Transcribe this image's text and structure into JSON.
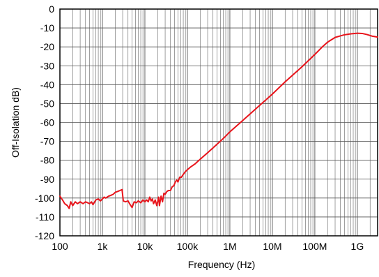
{
  "chart_data": {
    "type": "line",
    "title": "",
    "xlabel": "Frequency (Hz)",
    "ylabel": "Off-Isolation dB)",
    "xscale": "log",
    "xlim": [
      100,
      3000000000
    ],
    "ylim": [
      -120,
      0
    ],
    "grid": true,
    "legend": "none",
    "x_ticks": [
      {
        "value": 100,
        "label": "100"
      },
      {
        "value": 1000,
        "label": "1k"
      },
      {
        "value": 10000,
        "label": "10k"
      },
      {
        "value": 100000,
        "label": "100k"
      },
      {
        "value": 1000000,
        "label": "1M"
      },
      {
        "value": 10000000,
        "label": "10M"
      },
      {
        "value": 100000000,
        "label": "100M"
      },
      {
        "value": 1000000000,
        "label": "1G"
      }
    ],
    "y_ticks": [
      {
        "value": 0,
        "label": "0"
      },
      {
        "value": -10,
        "label": "-10"
      },
      {
        "value": -20,
        "label": "-20"
      },
      {
        "value": -30,
        "label": "-30"
      },
      {
        "value": -40,
        "label": "-40"
      },
      {
        "value": -50,
        "label": "-50"
      },
      {
        "value": -60,
        "label": "-60"
      },
      {
        "value": -70,
        "label": "-70"
      },
      {
        "value": -80,
        "label": "-80"
      },
      {
        "value": -90,
        "label": "-90"
      },
      {
        "value": -100,
        "label": "-100"
      },
      {
        "value": -110,
        "label": "-110"
      },
      {
        "value": -120,
        "label": "-120"
      }
    ],
    "series": [
      {
        "color": "#e8141b",
        "points": [
          [
            100,
            -99
          ],
          [
            115,
            -101
          ],
          [
            130,
            -103
          ],
          [
            150,
            -104
          ],
          [
            165,
            -105.5
          ],
          [
            180,
            -102
          ],
          [
            200,
            -104
          ],
          [
            230,
            -102
          ],
          [
            260,
            -103
          ],
          [
            300,
            -102
          ],
          [
            350,
            -103
          ],
          [
            400,
            -102
          ],
          [
            450,
            -102.5
          ],
          [
            500,
            -103
          ],
          [
            550,
            -102
          ],
          [
            600,
            -103.5
          ],
          [
            700,
            -101
          ],
          [
            800,
            -100.5
          ],
          [
            900,
            -101.5
          ],
          [
            1000,
            -100.5
          ],
          [
            1100,
            -99.5
          ],
          [
            1200,
            -100
          ],
          [
            1400,
            -99
          ],
          [
            1600,
            -98.5
          ],
          [
            1800,
            -98
          ],
          [
            2000,
            -97
          ],
          [
            2300,
            -96.5
          ],
          [
            2600,
            -96
          ],
          [
            2900,
            -95.5
          ],
          [
            3100,
            -101.5
          ],
          [
            3500,
            -102
          ],
          [
            4000,
            -101.5
          ],
          [
            4500,
            -103.5
          ],
          [
            5000,
            -105
          ],
          [
            5600,
            -102
          ],
          [
            6300,
            -102.5
          ],
          [
            7000,
            -101.5
          ],
          [
            8000,
            -102.5
          ],
          [
            9000,
            -101
          ],
          [
            10000,
            -102
          ],
          [
            11000,
            -101
          ],
          [
            12000,
            -102
          ],
          [
            13000,
            -99.5
          ],
          [
            14000,
            -101.5
          ],
          [
            15000,
            -100.5
          ],
          [
            16000,
            -103
          ],
          [
            17500,
            -101
          ],
          [
            19000,
            -104
          ],
          [
            20000,
            -102
          ],
          [
            21000,
            -99.5
          ],
          [
            22000,
            -104
          ],
          [
            24000,
            -99
          ],
          [
            26000,
            -102
          ],
          [
            28000,
            -97.5
          ],
          [
            30000,
            -98
          ],
          [
            33000,
            -96.5
          ],
          [
            36000,
            -96
          ],
          [
            40000,
            -96
          ],
          [
            44000,
            -94
          ],
          [
            48000,
            -93.5
          ],
          [
            52000,
            -91.5
          ],
          [
            56000,
            -90.5
          ],
          [
            60000,
            -91.5
          ],
          [
            66000,
            -89
          ],
          [
            72000,
            -89
          ],
          [
            80000,
            -87.5
          ],
          [
            90000,
            -86
          ],
          [
            100000,
            -85
          ],
          [
            120000,
            -83.5
          ],
          [
            150000,
            -82
          ],
          [
            200000,
            -79.5
          ],
          [
            300000,
            -76
          ],
          [
            500000,
            -71.5
          ],
          [
            700000,
            -68.5
          ],
          [
            1000000,
            -65
          ],
          [
            2000000,
            -59
          ],
          [
            3000000,
            -55.5
          ],
          [
            5000000,
            -51
          ],
          [
            10000000,
            -45
          ],
          [
            20000000,
            -38.5
          ],
          [
            50000000,
            -30.5
          ],
          [
            100000000,
            -24
          ],
          [
            150000000,
            -20
          ],
          [
            200000000,
            -17.5
          ],
          [
            300000000,
            -15
          ],
          [
            400000000,
            -14.2
          ],
          [
            500000000,
            -13.6
          ],
          [
            700000000,
            -13.1
          ],
          [
            1000000000,
            -12.8
          ],
          [
            1300000000,
            -12.9
          ],
          [
            1700000000,
            -13.5
          ],
          [
            2200000000,
            -14.3
          ],
          [
            3000000000,
            -14.8
          ]
        ]
      }
    ]
  }
}
